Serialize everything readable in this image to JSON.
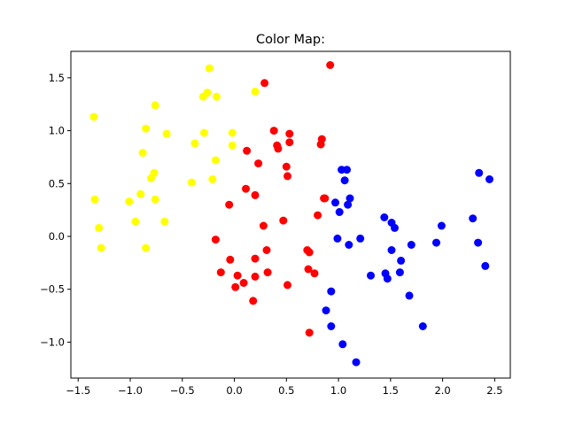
{
  "chart_data": {
    "type": "scatter",
    "title": "Color Map:",
    "xlabel": "",
    "ylabel": "",
    "xlim": [
      -1.57,
      2.65
    ],
    "ylim": [
      -1.34,
      1.75
    ],
    "xticks": [
      -1.5,
      -1.0,
      -0.5,
      0.0,
      0.5,
      1.0,
      1.5,
      2.0,
      2.5
    ],
    "xtick_labels": [
      "−1.5",
      "−1.0",
      "−0.5",
      "0.0",
      "0.5",
      "1.0",
      "1.5",
      "2.0",
      "2.5"
    ],
    "yticks": [
      -1.0,
      -0.5,
      0.0,
      0.5,
      1.0,
      1.5
    ],
    "ytick_labels": [
      "−1.0",
      "−0.5",
      "0.0",
      "0.5",
      "1.0",
      "1.5"
    ],
    "grid": false,
    "series": [
      {
        "color": "#ffff00",
        "points": [
          [
            -1.35,
            1.13
          ],
          [
            -1.34,
            0.35
          ],
          [
            -1.3,
            0.08
          ],
          [
            -1.28,
            -0.11
          ],
          [
            -1.01,
            0.33
          ],
          [
            -0.95,
            0.14
          ],
          [
            -0.9,
            0.4
          ],
          [
            -0.88,
            0.79
          ],
          [
            -0.85,
            1.02
          ],
          [
            -0.85,
            -0.11
          ],
          [
            -0.8,
            0.55
          ],
          [
            -0.77,
            0.6
          ],
          [
            -0.76,
            0.35
          ],
          [
            -0.76,
            1.24
          ],
          [
            -0.67,
            0.14
          ],
          [
            -0.65,
            0.97
          ],
          [
            -0.41,
            0.51
          ],
          [
            -0.38,
            0.88
          ],
          [
            -0.3,
            1.32
          ],
          [
            -0.29,
            0.98
          ],
          [
            -0.26,
            1.36
          ],
          [
            -0.24,
            1.59
          ],
          [
            -0.21,
            0.54
          ],
          [
            -0.18,
            0.72
          ],
          [
            -0.17,
            1.32
          ],
          [
            -0.02,
            0.98
          ],
          [
            -0.02,
            0.86
          ],
          [
            0.2,
            1.37
          ]
        ]
      },
      {
        "color": "#ff0000",
        "points": [
          [
            -0.18,
            -0.03
          ],
          [
            -0.13,
            -0.34
          ],
          [
            -0.05,
            0.3
          ],
          [
            -0.04,
            -0.22
          ],
          [
            0.01,
            -0.48
          ],
          [
            0.03,
            -0.37
          ],
          [
            0.09,
            -0.44
          ],
          [
            0.11,
            0.45
          ],
          [
            0.12,
            0.81
          ],
          [
            0.18,
            -0.61
          ],
          [
            0.2,
            0.39
          ],
          [
            0.2,
            -0.21
          ],
          [
            0.2,
            -0.38
          ],
          [
            0.23,
            0.69
          ],
          [
            0.28,
            0.1
          ],
          [
            0.29,
            1.45
          ],
          [
            0.31,
            -0.13
          ],
          [
            0.32,
            -0.34
          ],
          [
            0.38,
            1.0
          ],
          [
            0.41,
            0.86
          ],
          [
            0.42,
            0.83
          ],
          [
            0.47,
            0.15
          ],
          [
            0.5,
            0.66
          ],
          [
            0.51,
            0.57
          ],
          [
            0.51,
            -0.46
          ],
          [
            0.53,
            0.97
          ],
          [
            0.53,
            0.89
          ],
          [
            0.7,
            -0.13
          ],
          [
            0.71,
            -0.31
          ],
          [
            0.72,
            -0.15
          ],
          [
            0.72,
            -0.91
          ],
          [
            0.77,
            -0.35
          ],
          [
            0.8,
            0.2
          ],
          [
            0.83,
            0.87
          ],
          [
            0.84,
            0.92
          ],
          [
            0.86,
            0.36
          ],
          [
            0.87,
            0.36
          ],
          [
            0.92,
            1.62
          ]
        ]
      },
      {
        "color": "#0000ff",
        "points": [
          [
            0.88,
            -0.7
          ],
          [
            0.93,
            -0.52
          ],
          [
            0.93,
            -0.85
          ],
          [
            0.97,
            0.32
          ],
          [
            0.99,
            -0.02
          ],
          [
            1.01,
            0.23
          ],
          [
            1.03,
            0.63
          ],
          [
            1.04,
            -1.02
          ],
          [
            1.06,
            0.53
          ],
          [
            1.08,
            0.63
          ],
          [
            1.09,
            0.3
          ],
          [
            1.1,
            -0.08
          ],
          [
            1.11,
            0.36
          ],
          [
            1.17,
            -1.19
          ],
          [
            1.21,
            -0.02
          ],
          [
            1.31,
            -0.37
          ],
          [
            1.44,
            0.18
          ],
          [
            1.45,
            -0.35
          ],
          [
            1.47,
            -0.4
          ],
          [
            1.51,
            0.13
          ],
          [
            1.51,
            -0.13
          ],
          [
            1.54,
            0.08
          ],
          [
            1.59,
            -0.34
          ],
          [
            1.6,
            -0.23
          ],
          [
            1.68,
            -0.56
          ],
          [
            1.7,
            -0.08
          ],
          [
            1.81,
            -0.85
          ],
          [
            1.94,
            -0.06
          ],
          [
            1.99,
            0.1
          ],
          [
            2.29,
            0.17
          ],
          [
            2.34,
            -0.06
          ],
          [
            2.35,
            0.6
          ],
          [
            2.41,
            -0.28
          ],
          [
            2.45,
            0.54
          ]
        ]
      }
    ]
  }
}
